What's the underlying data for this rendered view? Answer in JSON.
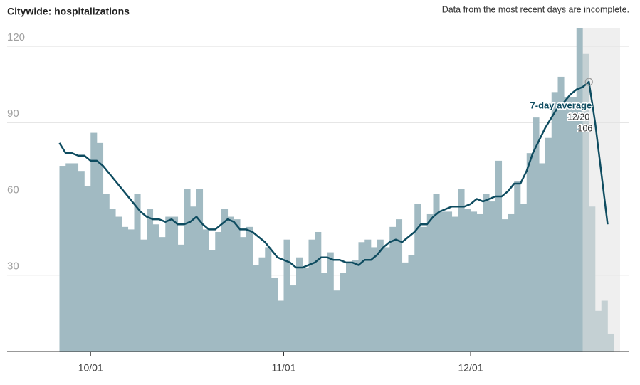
{
  "chart_data": {
    "type": "bar-line",
    "title": "Citywide: hospitalizations",
    "note": "Data from the most recent days are incomplete.",
    "categories": [
      null,
      null,
      null,
      null,
      null,
      "10/01",
      null,
      null,
      null,
      null,
      null,
      null,
      null,
      null,
      null,
      null,
      null,
      null,
      null,
      null,
      null,
      null,
      null,
      null,
      null,
      null,
      null,
      null,
      null,
      null,
      null,
      null,
      null,
      null,
      null,
      null,
      "11/01",
      null,
      null,
      null,
      null,
      null,
      null,
      null,
      null,
      null,
      null,
      null,
      null,
      null,
      null,
      null,
      null,
      null,
      null,
      null,
      null,
      null,
      null,
      null,
      null,
      null,
      null,
      null,
      null,
      null,
      "12/01",
      null,
      null,
      null,
      null,
      null,
      null,
      null,
      null,
      null,
      null,
      null,
      null,
      null,
      null,
      null,
      null,
      null,
      null,
      null,
      null,
      null,
      null
    ],
    "series": [
      {
        "color": "#a1bac2",
        "values": [
          73,
          74,
          74,
          71,
          65,
          86,
          82,
          62,
          56,
          53,
          49,
          48,
          62,
          44,
          56,
          50,
          45,
          53,
          53,
          42,
          64,
          57,
          64,
          48,
          40,
          47,
          56,
          53,
          52,
          45,
          49,
          34,
          37,
          41,
          29,
          20,
          44,
          26,
          37,
          33,
          44,
          47,
          31,
          39,
          24,
          31,
          35,
          36,
          43,
          44,
          41,
          44,
          41,
          49,
          52,
          35,
          38,
          58,
          49,
          54,
          62,
          55,
          55,
          53,
          64,
          56,
          55,
          54,
          62,
          59,
          75,
          52,
          54,
          67,
          58,
          78,
          92,
          74,
          84,
          102,
          108,
          100,
          100,
          127,
          117,
          57,
          16,
          20,
          7
        ]
      },
      {
        "name": "7-day average",
        "color": "#0e4c60",
        "values": [
          82,
          78,
          78,
          77,
          77,
          75,
          75,
          73,
          70,
          67,
          64,
          61,
          58,
          55,
          53,
          52,
          52,
          51,
          52,
          50,
          50,
          51,
          53,
          50,
          48,
          48,
          50,
          52,
          51,
          48,
          48,
          47,
          45,
          43,
          40,
          37,
          36,
          35,
          33,
          33,
          34,
          35,
          37,
          37,
          36,
          36,
          35,
          35,
          34,
          36,
          36,
          38,
          41,
          43,
          44,
          43,
          45,
          47,
          50,
          50,
          53,
          55,
          56,
          57,
          57,
          57,
          58,
          60,
          59,
          60,
          61,
          61,
          63,
          66,
          66,
          71,
          78,
          83,
          88,
          92,
          96,
          98,
          101,
          103,
          104,
          106,
          90,
          70,
          50
        ]
      }
    ],
    "annotation": {
      "label": "7-day average",
      "date": "12/20",
      "value": 106
    },
    "ylim": [
      0,
      127
    ],
    "yticks": [
      30,
      60,
      90,
      120
    ],
    "grid": true
  }
}
